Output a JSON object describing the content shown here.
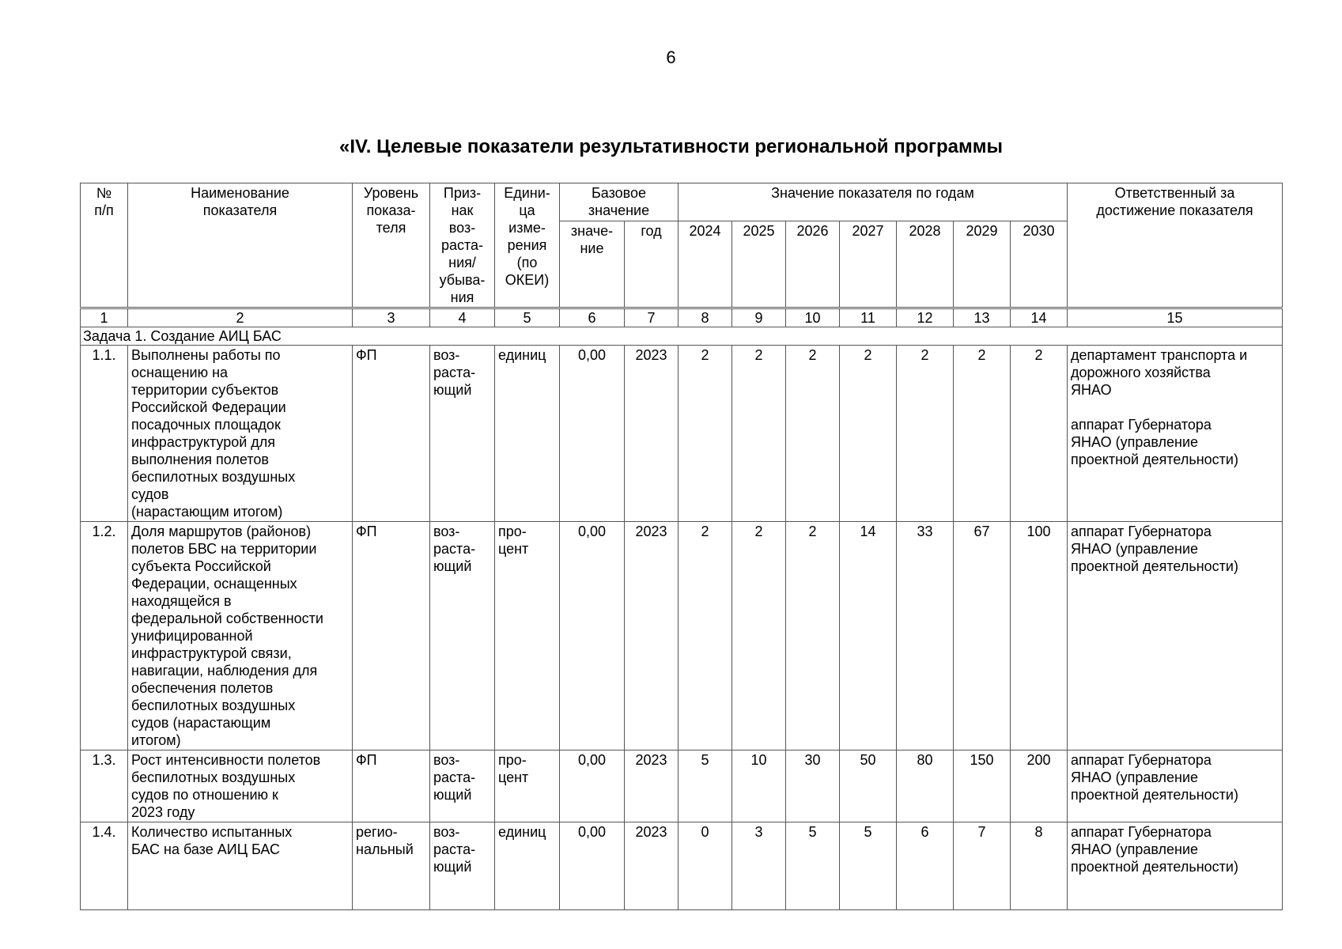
{
  "page_number": "6",
  "title": "«IV. Целевые показатели результативности региональной программы",
  "header": {
    "num": "№\nп/п",
    "name": "Наименование\nпоказателя",
    "level": "Уровень\nпоказа-\nтеля",
    "sign": "Приз-\nнак\nвоз-\nраста-\nния/\nубыва-\nния",
    "unit": "Едини-\nца\nизме-\nрения\n(по\nОКЕИ)",
    "base": "Базовое\nзначение",
    "base_value": "значе-\nние",
    "base_year": "год",
    "by_years": "Значение показателя по годам",
    "years": [
      "2024",
      "2025",
      "2026",
      "2027",
      "2028",
      "2029",
      "2030"
    ],
    "responsible": "Ответственный за\nдостижение показателя"
  },
  "column_numbers": [
    "1",
    "2",
    "3",
    "4",
    "5",
    "6",
    "7",
    "8",
    "9",
    "10",
    "11",
    "12",
    "13",
    "14",
    "15"
  ],
  "task": "Задача 1. Создание АИЦ БАС",
  "rows": [
    {
      "num": "1.1.",
      "name": "Выполнены работы по\nоснащению на\nтерритории субъектов\nРоссийской Федерации\nпосадочных площадок\nинфраструктурой для\nвыполнения полетов\nбеспилотных воздушных\nсудов\n(нарастающим итогом)",
      "level": "ФП",
      "sign": "воз-\nраста-\nющий",
      "unit": "единиц",
      "base_value": "0,00",
      "base_year": "2023",
      "values": [
        "2",
        "2",
        "2",
        "2",
        "2",
        "2",
        "2"
      ],
      "responsible": "департамент транспорта и\nдорожного хозяйства\nЯНАО\n\nаппарат Губернатора\nЯНАО (управление\nпроектной деятельности)"
    },
    {
      "num": "1.2.",
      "name": "Доля маршрутов (районов)\nполетов БВС на территории\nсубъекта Российской\nФедерации, оснащенных\nнаходящейся в\nфедеральной собственности\nунифицированной\nинфраструктурой связи,\nнавигации, наблюдения для\nобеспечения полетов\nбеспилотных воздушных\nсудов (нарастающим\nитогом)",
      "level": "ФП",
      "sign": "воз-\nраста-\nющий",
      "unit": "про-\nцент",
      "base_value": "0,00",
      "base_year": "2023",
      "values": [
        "2",
        "2",
        "2",
        "14",
        "33",
        "67",
        "100"
      ],
      "responsible": "аппарат Губернатора\nЯНАО (управление\nпроектной деятельности)"
    },
    {
      "num": "1.3.",
      "name": "Рост интенсивности полетов\nбеспилотных воздушных\nсудов по отношению к\n2023 году",
      "level": "ФП",
      "sign": "воз-\nраста-\nющий",
      "unit": "про-\nцент",
      "base_value": "0,00",
      "base_year": "2023",
      "values": [
        "5",
        "10",
        "30",
        "50",
        "80",
        "150",
        "200"
      ],
      "responsible": "аппарат Губернатора\nЯНАО (управление\nпроектной деятельности)"
    },
    {
      "num": "1.4.",
      "name": "Количество испытанных\nБАС на базе АИЦ БАС",
      "level": "регио-\nнальный",
      "sign": "воз-\nраста-\nющий",
      "unit": "единиц",
      "base_value": "0,00",
      "base_year": "2023",
      "values": [
        "0",
        "3",
        "5",
        "5",
        "6",
        "7",
        "8"
      ],
      "responsible": "аппарат Губернатора\nЯНАО (управление\nпроектной деятельности)"
    }
  ]
}
